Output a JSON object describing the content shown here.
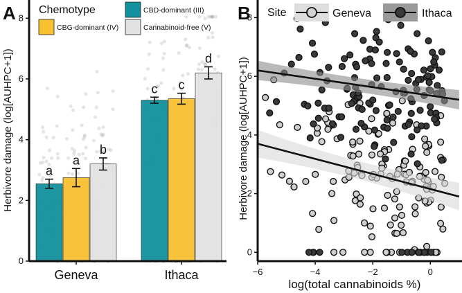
{
  "chart_data": [
    {
      "panel": "A",
      "type": "bar",
      "ylabel": "Herbivore damage (log[AUHPC+1])",
      "ylim": [
        0,
        8.6
      ],
      "yticks": [
        "0",
        "2",
        "4",
        "6",
        "8"
      ],
      "categories": [
        "Geneva",
        "Ithaca"
      ],
      "legend": {
        "title": "Chemotype",
        "placement": "top-left",
        "entries": [
          "CBD-dominant (III)",
          "CBG-dominant (IV)",
          "Cannabinoid-free (V)"
        ]
      },
      "series": [
        {
          "name": "CBD-dominant (III)",
          "color": "#12909c",
          "values": [
            2.55,
            5.3
          ],
          "errors": [
            0.15,
            0.1
          ],
          "letters": [
            "a",
            "c"
          ]
        },
        {
          "name": "CBG-dominant (IV)",
          "color": "#f7c030",
          "values": [
            2.75,
            5.35
          ],
          "errors": [
            0.3,
            0.18
          ],
          "letters": [
            "a",
            "c"
          ]
        },
        {
          "name": "Cannabinoid-free (V)",
          "color": "#e1e1e1",
          "values": [
            3.2,
            6.2
          ],
          "errors": [
            0.2,
            0.2
          ],
          "letters": [
            "b",
            "d"
          ]
        }
      ]
    },
    {
      "panel": "B",
      "type": "scatter",
      "xlabel": "log(total cannabinoids %)",
      "ylabel": "Herbivore damage (log[AUHPC+1])",
      "xlim": [
        -6,
        1.1
      ],
      "ylim": [
        -0.3,
        8.6
      ],
      "xticks": [
        "−6",
        "−4",
        "−2",
        "0"
      ],
      "yticks": [
        "0",
        "2",
        "4",
        "6",
        "8"
      ],
      "legend": {
        "title": "Site",
        "placement": "top",
        "entries": [
          "Geneva",
          "Ithaca"
        ]
      },
      "series": [
        {
          "name": "Geneva",
          "color": "#cfcfcf",
          "fit": {
            "x": [
              -6,
              1
            ],
            "y": [
              3.7,
              1.9
            ]
          }
        },
        {
          "name": "Ithaca",
          "color": "#3a3a3a",
          "fit": {
            "x": [
              -6,
              1
            ],
            "y": [
              6.2,
              5.2
            ]
          }
        }
      ]
    }
  ],
  "panels": {
    "a": "A",
    "b": "B"
  }
}
